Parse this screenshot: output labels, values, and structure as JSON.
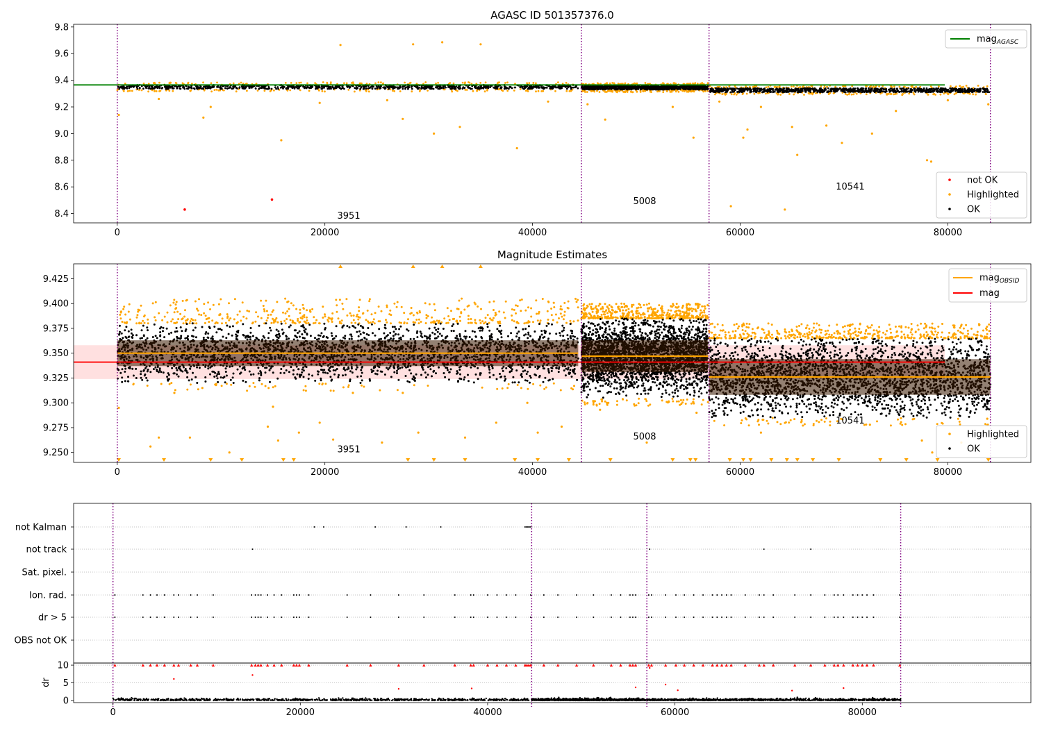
{
  "colors": {
    "ok": "#000000",
    "highlighted": "#ffa500",
    "not_ok": "#ff0000",
    "agasc_line": "#008000",
    "mag_line": "#ff0000",
    "obsid_line": "#ffa500",
    "obsid_boundary": "#800080",
    "mag_band": "#ffdddd",
    "obsid_band": "#3a1a00"
  },
  "obsid_boundaries": [
    0,
    44700,
    57000,
    84100
  ],
  "chart_data": [
    {
      "id": "agasc",
      "type": "scatter",
      "title": "AGASC ID 501357376.0",
      "xlim": [
        -4200,
        88000
      ],
      "ylim": [
        8.33,
        9.82
      ],
      "xticks": [
        0,
        20000,
        40000,
        60000,
        80000
      ],
      "xtick_labels": [
        "0",
        "20000",
        "40000",
        "60000",
        "80000"
      ],
      "yticks": [
        8.4,
        8.6,
        8.8,
        9.0,
        9.2,
        9.4,
        9.6,
        9.8
      ],
      "ytick_labels": [
        "8.4",
        "8.6",
        "8.8",
        "9.0",
        "9.2",
        "9.4",
        "9.6",
        "9.8"
      ],
      "hlines": [
        {
          "y": 9.365,
          "x": [
            -4200,
            88000
          ],
          "color_key": "agasc_line"
        }
      ],
      "obsid_counts": [
        {
          "x": 22300,
          "y": 8.36,
          "label": "3951"
        },
        {
          "x": 50800,
          "y": 8.47,
          "label": "5008"
        },
        {
          "x": 70600,
          "y": 8.58,
          "label": "10541"
        }
      ],
      "bands": [
        {
          "x": [
            0,
            44400
          ],
          "center": 9.35,
          "width": 0.03
        },
        {
          "x": [
            44700,
            56900
          ],
          "center": 9.345,
          "width": 0.03
        },
        {
          "x": [
            57000,
            84100
          ],
          "center": 9.325,
          "width": 0.03
        }
      ],
      "not_ok_points": [
        [
          6500,
          8.43
        ],
        [
          14900,
          8.505
        ]
      ],
      "highlighted_outliers": [
        [
          21500,
          9.665
        ],
        [
          28500,
          9.67
        ],
        [
          31300,
          9.685
        ],
        [
          35000,
          9.67
        ],
        [
          150,
          9.14
        ],
        [
          8300,
          9.12
        ],
        [
          15800,
          8.95
        ],
        [
          27500,
          9.11
        ],
        [
          30500,
          9.0
        ],
        [
          33000,
          9.05
        ],
        [
          38500,
          8.89
        ],
        [
          47000,
          9.105
        ],
        [
          55500,
          8.97
        ],
        [
          59100,
          8.455
        ],
        [
          60300,
          8.97
        ],
        [
          60700,
          9.03
        ],
        [
          64300,
          8.43
        ],
        [
          65500,
          8.84
        ],
        [
          68300,
          9.06
        ],
        [
          69800,
          8.93
        ],
        [
          72700,
          9.0
        ],
        [
          78000,
          8.8
        ],
        [
          78400,
          8.79
        ],
        [
          4000,
          9.26
        ],
        [
          9000,
          9.2
        ],
        [
          19500,
          9.23
        ],
        [
          26000,
          9.25
        ],
        [
          41500,
          9.24
        ],
        [
          45300,
          9.22
        ],
        [
          53500,
          9.2
        ],
        [
          58000,
          9.24
        ],
        [
          62000,
          9.2
        ],
        [
          65000,
          9.05
        ],
        [
          75000,
          9.17
        ],
        [
          80000,
          9.25
        ],
        [
          83900,
          9.22
        ]
      ],
      "legend_lines": [
        {
          "label": "mag",
          "sub": "AGASC",
          "color_key": "agasc_line"
        }
      ],
      "legend_points": [
        {
          "label": "not OK",
          "color_key": "not_ok"
        },
        {
          "label": "Highlighted",
          "color_key": "highlighted"
        },
        {
          "label": "OK",
          "color_key": "ok"
        }
      ]
    },
    {
      "id": "estimates",
      "type": "scatter",
      "title": "Magnitude Estimates",
      "xlim": [
        -4200,
        88000
      ],
      "ylim": [
        9.24,
        9.44
      ],
      "xticks": [
        0,
        20000,
        40000,
        60000,
        80000
      ],
      "xtick_labels": [
        "0",
        "20000",
        "40000",
        "60000",
        "80000"
      ],
      "yticks": [
        9.25,
        9.275,
        9.3,
        9.325,
        9.35,
        9.375,
        9.4,
        9.425
      ],
      "ytick_labels": [
        "9.250",
        "9.275",
        "9.300",
        "9.325",
        "9.350",
        "9.375",
        "9.400",
        "9.425"
      ],
      "mag": 9.341,
      "mag_band": [
        9.324,
        9.358
      ],
      "mag_line_x": [
        -4200,
        88000
      ],
      "obsid_segments": [
        {
          "x": [
            0,
            44400
          ],
          "mag": 9.35,
          "spread": 0.013,
          "ok_range": [
            9.32,
            9.38
          ],
          "hl_range": [
            9.38,
            9.405
          ]
        },
        {
          "x": [
            44700,
            56900
          ],
          "mag": 9.347,
          "spread": 0.016,
          "ok_range": [
            9.305,
            9.385
          ],
          "hl_range": [
            9.385,
            9.4
          ]
        },
        {
          "x": [
            57000,
            84100
          ],
          "mag": 9.326,
          "spread": 0.018,
          "ok_range": [
            9.285,
            9.365
          ],
          "hl_range": [
            9.365,
            9.38
          ]
        }
      ],
      "obsid_counts": [
        {
          "x": 22300,
          "y": 9.25,
          "label": "3951"
        },
        {
          "x": 50800,
          "y": 9.263,
          "label": "5008"
        },
        {
          "x": 70600,
          "y": 9.279,
          "label": "10541"
        }
      ],
      "highlighted_upper_clip": [
        21500,
        28500,
        31300,
        35000
      ],
      "highlighted_lower_clip": [
        150,
        4500,
        9000,
        12000,
        16000,
        17000,
        28000,
        30500,
        33500,
        38300,
        40500,
        43500,
        47500,
        53500,
        55200,
        55700,
        59000,
        60300,
        61000,
        63000,
        64500,
        65500,
        67000,
        69500,
        73500,
        76000,
        79000,
        83900
      ],
      "highlighted_scattered": [
        [
          150,
          9.295
        ],
        [
          3200,
          9.256
        ],
        [
          4000,
          9.265
        ],
        [
          5500,
          9.31
        ],
        [
          7000,
          9.265
        ],
        [
          8200,
          9.315
        ],
        [
          10800,
          9.25
        ],
        [
          14500,
          9.276
        ],
        [
          15000,
          9.296
        ],
        [
          15500,
          9.262
        ],
        [
          17500,
          9.27
        ],
        [
          19500,
          9.28
        ],
        [
          20800,
          9.263
        ],
        [
          22700,
          9.31
        ],
        [
          25500,
          9.26
        ],
        [
          27500,
          9.31
        ],
        [
          29000,
          9.27
        ],
        [
          33500,
          9.265
        ],
        [
          36500,
          9.28
        ],
        [
          39500,
          9.3
        ],
        [
          40500,
          9.27
        ],
        [
          42800,
          9.276
        ],
        [
          46500,
          9.293
        ],
        [
          51000,
          9.26
        ],
        [
          55800,
          9.29
        ],
        [
          62000,
          9.27
        ],
        [
          72500,
          9.278
        ],
        [
          77500,
          9.262
        ],
        [
          78500,
          9.25
        ],
        [
          81300,
          9.26
        ],
        [
          83800,
          9.284
        ]
      ],
      "legend_lines": [
        {
          "label": "mag",
          "sub": "OBSID",
          "color_key": "obsid_line"
        },
        {
          "label": "mag",
          "sub": "",
          "color_key": "mag_line"
        }
      ],
      "legend_points": [
        {
          "label": "Highlighted",
          "color_key": "highlighted"
        },
        {
          "label": "OK",
          "color_key": "ok"
        }
      ]
    },
    {
      "id": "flags",
      "type": "scatter",
      "xlim": [
        -4200,
        98000
      ],
      "categories": [
        "not Kalman",
        "not track",
        "Sat. pixel.",
        "Ion. rad.",
        "dr > 5",
        "OBS not OK"
      ],
      "flag_points": {
        "not Kalman": [
          21500,
          22500,
          28000,
          31300,
          35000,
          44000,
          44150,
          44300,
          44450,
          44600
        ],
        "not track": [
          14900,
          57300,
          69500,
          74500
        ],
        "Sat. pixel.": [],
        "Ion. rad.": [
          200,
          3200,
          4000,
          4700,
          5500,
          6500,
          7000,
          8300,
          9000,
          10700,
          14800,
          15200,
          15500,
          15800,
          16500,
          17200,
          18000,
          19300,
          19600,
          19900,
          20900,
          25000,
          27500,
          30500,
          33200,
          36500,
          38200,
          38500,
          40000,
          41000,
          42000,
          43000,
          44600,
          46000,
          47500,
          49500,
          51300,
          53200,
          54200,
          55200,
          55500,
          55800,
          57200,
          57500,
          59000,
          60100,
          61000,
          62000,
          63000,
          64000,
          64500,
          65000,
          65500,
          66000,
          67500,
          69000,
          69500,
          70500,
          72800,
          74500,
          76000,
          77000,
          77400,
          78000,
          79000,
          79500,
          80000,
          80500,
          81200,
          84000
        ],
        "dr > 5": [
          200,
          3200,
          4000,
          4700,
          5500,
          6500,
          7000,
          8300,
          9000,
          10700,
          14800,
          15200,
          15500,
          15800,
          16500,
          17200,
          18000,
          19300,
          19600,
          19900,
          20900,
          25000,
          27500,
          30500,
          33200,
          36500,
          38200,
          38500,
          40000,
          41000,
          42000,
          43000,
          44600,
          46000,
          47500,
          49500,
          51300,
          53200,
          54200,
          55200,
          55500,
          55800,
          57200,
          57500,
          59000,
          60100,
          61000,
          62000,
          63000,
          64000,
          64500,
          65000,
          65500,
          66000,
          67500,
          69000,
          69500,
          70500,
          72800,
          74500,
          76000,
          77000,
          77400,
          78000,
          79000,
          79500,
          80000,
          80500,
          81200,
          84000
        ],
        "OBS not OK": []
      }
    },
    {
      "id": "dr",
      "type": "scatter",
      "xlim": [
        -4200,
        98000
      ],
      "ylim": [
        -0.6,
        10.6
      ],
      "ylabel": "dr",
      "xticks": [
        0,
        20000,
        40000,
        60000,
        80000
      ],
      "xtick_labels": [
        "0",
        "20000",
        "40000",
        "60000",
        "80000"
      ],
      "yticks": [
        0,
        5,
        10
      ],
      "ytick_labels": [
        "0",
        "5",
        "10"
      ],
      "clipped_x": [
        200,
        3200,
        4000,
        4700,
        5500,
        6500,
        7000,
        8300,
        9000,
        10700,
        14800,
        15200,
        15500,
        15800,
        16500,
        17200,
        18000,
        19300,
        19600,
        19900,
        20900,
        25000,
        27500,
        30500,
        33200,
        36500,
        38200,
        38500,
        40000,
        41000,
        42000,
        43000,
        44000,
        44200,
        44400,
        44600,
        46000,
        47500,
        49500,
        51300,
        53200,
        54200,
        55200,
        55500,
        55800,
        57200,
        57500,
        59000,
        60100,
        61000,
        62000,
        63000,
        64000,
        64500,
        65000,
        65500,
        66000,
        67500,
        69000,
        69500,
        70500,
        72800,
        74500,
        76000,
        77000,
        77400,
        78000,
        79000,
        79500,
        80000,
        80500,
        81200,
        84000
      ],
      "mid_points": [
        [
          6500,
          6.1
        ],
        [
          14900,
          7.2
        ],
        [
          30500,
          3.3
        ],
        [
          57300,
          9.2
        ],
        [
          55800,
          3.7
        ],
        [
          59000,
          4.5
        ],
        [
          60300,
          2.9
        ],
        [
          72500,
          2.8
        ],
        [
          38300,
          3.4
        ],
        [
          78000,
          3.5
        ]
      ]
    }
  ]
}
